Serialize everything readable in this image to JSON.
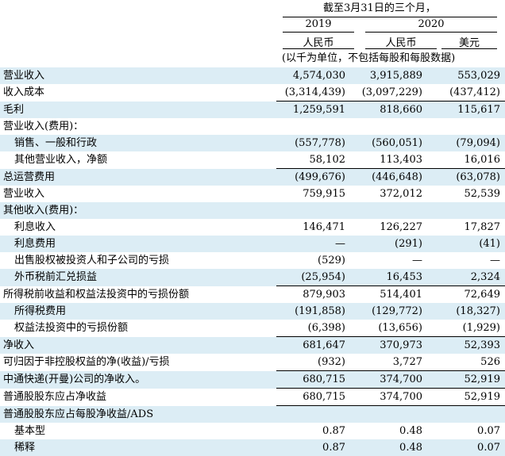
{
  "header": {
    "period": "截至3月31日的三个月，",
    "year_2019": "2019",
    "year_2020": "2020",
    "currency_rmb_1": "人民币",
    "currency_rmb_2": "人民币",
    "currency_usd": "美元",
    "unit_note": "(以千为单位，不包括每股和每股数据)"
  },
  "rows": [
    {
      "label": "营业收入",
      "v2019": "4,574,030",
      "v2020_rmb": "3,915,889",
      "v2020_usd": "553,029"
    },
    {
      "label": "收入成本",
      "v2019": "(3,314,439)",
      "v2020_rmb": "(3,097,229)",
      "v2020_usd": "(437,412)"
    },
    {
      "label": "毛利",
      "v2019": "1,259,591",
      "v2020_rmb": "818,660",
      "v2020_usd": "115,617"
    },
    {
      "label": "营业收入(费用)：",
      "v2019": "",
      "v2020_rmb": "",
      "v2020_usd": ""
    },
    {
      "label": "销售、一般和行政",
      "v2019": "(557,778)",
      "v2020_rmb": "(560,051)",
      "v2020_usd": "(79,094)"
    },
    {
      "label": "其他营业收入，净额",
      "v2019": "58,102",
      "v2020_rmb": "113,403",
      "v2020_usd": "16,016"
    },
    {
      "label": "总运营费用",
      "v2019": "(499,676)",
      "v2020_rmb": "(446,648)",
      "v2020_usd": "(63,078)"
    },
    {
      "label": "营业收入",
      "v2019": "759,915",
      "v2020_rmb": "372,012",
      "v2020_usd": "52,539"
    },
    {
      "label": "其他收入(费用)：",
      "v2019": "",
      "v2020_rmb": "",
      "v2020_usd": ""
    },
    {
      "label": "利息收入",
      "v2019": "146,471",
      "v2020_rmb": "126,227",
      "v2020_usd": "17,827"
    },
    {
      "label": "利息费用",
      "v2019": "—",
      "v2020_rmb": "(291)",
      "v2020_usd": "(41)"
    },
    {
      "label": "出售股权被投资人和子公司的亏损",
      "v2019": "(529)",
      "v2020_rmb": "—",
      "v2020_usd": "—"
    },
    {
      "label": "外币税前汇兑损益",
      "v2019": "(25,954)",
      "v2020_rmb": "16,453",
      "v2020_usd": "2,324"
    },
    {
      "label": "所得税前收益和权益法投资中的亏损份额",
      "v2019": "879,903",
      "v2020_rmb": "514,401",
      "v2020_usd": "72,649"
    },
    {
      "label": "所得税费用",
      "v2019": "(191,858)",
      "v2020_rmb": "(129,772)",
      "v2020_usd": "(18,327)"
    },
    {
      "label": "权益法投资中的亏损份额",
      "v2019": "(6,398)",
      "v2020_rmb": "(13,656)",
      "v2020_usd": "(1,929)"
    },
    {
      "label": "净收入",
      "v2019": "681,647",
      "v2020_rmb": "370,973",
      "v2020_usd": "52,393"
    },
    {
      "label": "可归因于非控股权益的净(收益)/亏损",
      "v2019": "(932)",
      "v2020_rmb": "3,727",
      "v2020_usd": "526"
    },
    {
      "label": "中通快递(开曼)公司的净收入。",
      "v2019": "680,715",
      "v2020_rmb": "374,700",
      "v2020_usd": "52,919"
    },
    {
      "label": "普通股股东应占净收益",
      "v2019": "680,715",
      "v2020_rmb": "374,700",
      "v2020_usd": "52,919"
    },
    {
      "label": "普通股股东应占每股净收益/ADS",
      "v2019": "",
      "v2020_rmb": "",
      "v2020_usd": ""
    },
    {
      "label": "基本型",
      "v2019": "0.87",
      "v2020_rmb": "0.48",
      "v2020_usd": "0.07"
    },
    {
      "label": "稀释",
      "v2019": "0.87",
      "v2020_rmb": "0.48",
      "v2020_usd": "0.07"
    }
  ],
  "colors": {
    "row_shade": "#dcedf5",
    "text": "#000000",
    "background": "#ffffff"
  }
}
